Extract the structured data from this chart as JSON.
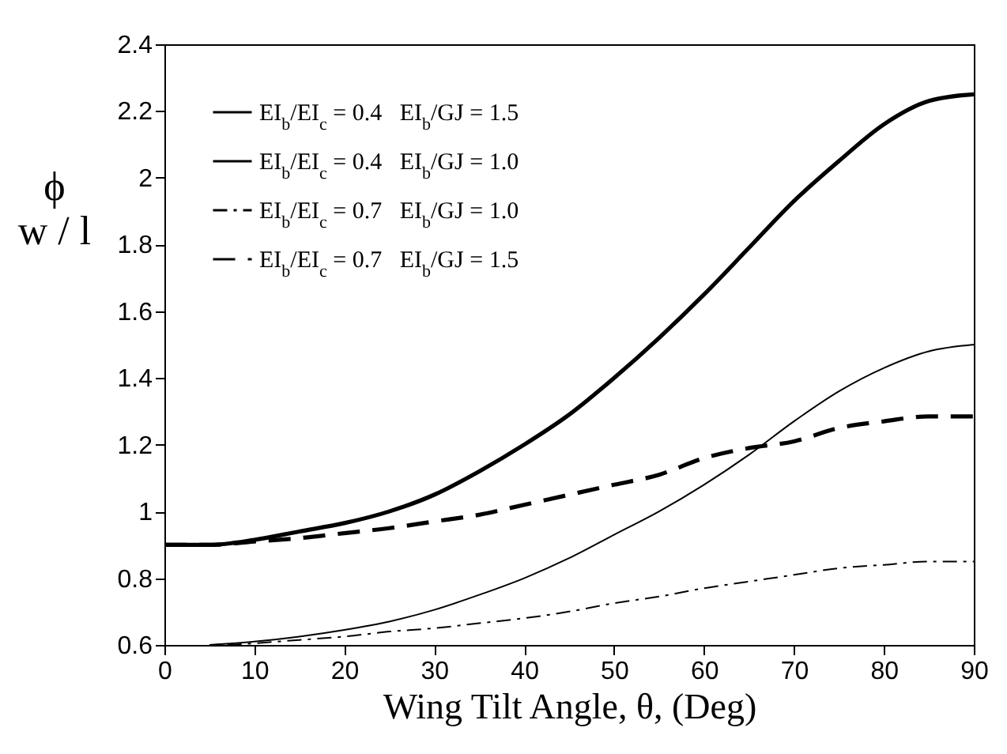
{
  "chart_data": {
    "type": "line",
    "xlabel": "Wing Tilt Angle, θ, (Deg)",
    "ylabel": "ϕ\nw / l",
    "xlim": [
      0,
      90
    ],
    "xticks": [
      0,
      10,
      20,
      30,
      40,
      50,
      60,
      70,
      80,
      90
    ],
    "ylim": [
      0.6,
      2.4
    ],
    "yticks": [
      0.6,
      0.8,
      1,
      1.2,
      1.4,
      1.6,
      1.8,
      2,
      2.2,
      2.4
    ],
    "grid": false,
    "legend": "top left",
    "series": [
      {
        "name": "EI$_{b}$/EI$_{c}$ = 0.4   EI$_{b}$/GJ = 1.5",
        "color": "#000000",
        "line_style": "solid",
        "x": [
          0,
          5,
          10,
          15,
          20,
          25,
          30,
          35,
          40,
          45,
          50,
          55,
          60,
          65,
          70,
          75,
          80,
          85,
          90
        ],
        "values": [
          0.9,
          0.9,
          0.915,
          0.94,
          0.965,
          1.0,
          1.05,
          1.12,
          1.2,
          1.29,
          1.4,
          1.52,
          1.65,
          1.79,
          1.93,
          2.05,
          2.16,
          2.23,
          2.25
        ]
      },
      {
        "name": "EI$_{b}$/EI$_{c}$ = 0.4   EI$_{b}$/GJ = 1.0",
        "color": "#000000",
        "line_style": "solid",
        "x": [
          5,
          10,
          15,
          20,
          25,
          30,
          35,
          40,
          45,
          50,
          55,
          60,
          65,
          70,
          75,
          80,
          85,
          90
        ],
        "values": [
          0.6,
          0.61,
          0.625,
          0.645,
          0.67,
          0.705,
          0.75,
          0.8,
          0.86,
          0.93,
          1.0,
          1.08,
          1.17,
          1.27,
          1.36,
          1.43,
          1.48,
          1.5
        ]
      },
      {
        "name": "EI$_{b}$/EI$_{c}$ = 0.7   EI$_{b}$/GJ = 1.0",
        "color": "#000000",
        "line_style": "dashdot",
        "x": [
          7,
          10,
          15,
          20,
          25,
          30,
          35,
          40,
          45,
          50,
          55,
          60,
          65,
          70,
          75,
          80,
          85,
          90
        ],
        "values": [
          0.6,
          0.605,
          0.615,
          0.625,
          0.64,
          0.65,
          0.665,
          0.68,
          0.7,
          0.725,
          0.745,
          0.77,
          0.79,
          0.81,
          0.83,
          0.84,
          0.85,
          0.85
        ]
      },
      {
        "name": "EI$_{b}$/EI$_{c}$ = 0.7   EI$_{b}$/GJ = 1.5",
        "color": "#000000",
        "line_style": "dashed",
        "x": [
          0,
          5,
          10,
          15,
          20,
          25,
          30,
          35,
          40,
          45,
          50,
          55,
          60,
          65,
          70,
          75,
          80,
          85,
          90
        ],
        "values": [
          0.9,
          0.9,
          0.91,
          0.92,
          0.935,
          0.95,
          0.97,
          0.99,
          1.02,
          1.05,
          1.08,
          1.11,
          1.16,
          1.19,
          1.21,
          1.25,
          1.27,
          1.285,
          1.285
        ]
      }
    ]
  }
}
